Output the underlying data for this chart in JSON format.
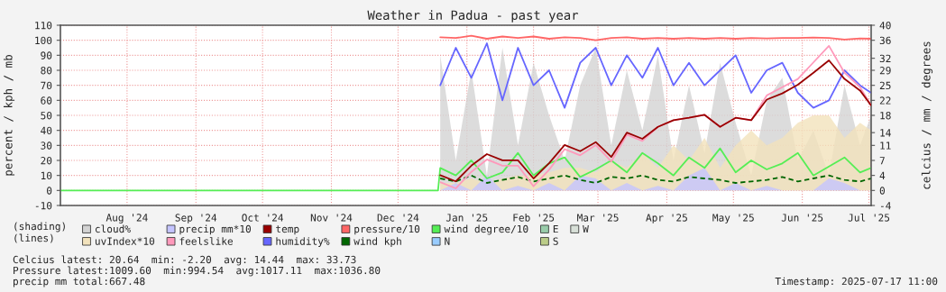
{
  "chart_data": {
    "type": "line",
    "title": "Weather in Padua - past year",
    "ylabel": "percent / kph / mb",
    "y2label": "celcius / mm / degrees",
    "x": [
      "2025-01-04",
      "2025-01-11",
      "2025-01-18",
      "2025-01-25",
      "2025-02-01",
      "2025-02-08",
      "2025-02-15",
      "2025-02-22",
      "2025-03-01",
      "2025-03-08",
      "2025-03-15",
      "2025-03-22",
      "2025-03-29",
      "2025-04-05",
      "2025-04-12",
      "2025-04-19",
      "2025-04-26",
      "2025-05-03",
      "2025-05-10",
      "2025-05-17",
      "2025-05-24",
      "2025-05-31",
      "2025-06-07",
      "2025-06-14",
      "2025-06-21",
      "2025-06-28",
      "2025-07-05",
      "2025-07-12",
      "2025-07-17"
    ],
    "series": [
      {
        "name": "cloud%",
        "type": "area",
        "color": "#d3d3d3",
        "values": [
          90,
          20,
          80,
          10,
          95,
          30,
          85,
          50,
          20,
          70,
          95,
          30,
          80,
          40,
          90,
          20,
          70,
          25,
          85,
          45,
          10,
          60,
          75,
          20,
          40,
          10,
          70,
          30,
          50
        ]
      },
      {
        "name": "uvIndex*10",
        "type": "area",
        "color": "#f2e2bc",
        "values": [
          5,
          5,
          8,
          5,
          8,
          10,
          10,
          12,
          15,
          15,
          12,
          20,
          15,
          25,
          15,
          30,
          20,
          35,
          15,
          30,
          40,
          30,
          35,
          45,
          50,
          50,
          35,
          45,
          40
        ]
      },
      {
        "name": "precip mm*10",
        "type": "area",
        "color": "#c4c4ff",
        "values": [
          0,
          5,
          0,
          10,
          0,
          3,
          0,
          5,
          0,
          10,
          8,
          0,
          5,
          0,
          3,
          0,
          10,
          15,
          0,
          5,
          0,
          3,
          0,
          0,
          0,
          8,
          5,
          0,
          0
        ]
      },
      {
        "name": "feelslike",
        "axis": "y2",
        "color": "#ff99bb",
        "values": [
          2.0,
          0.5,
          4.5,
          7.5,
          6,
          6,
          1,
          5,
          10,
          8.5,
          11,
          7,
          13.5,
          12,
          15.4,
          17,
          17.6,
          18.3,
          15.4,
          17.6,
          17,
          23,
          25,
          27,
          31,
          35,
          28.5,
          25,
          20.6
        ]
      },
      {
        "name": "temp",
        "axis": "y2",
        "color": "#990000",
        "values": [
          3.7,
          2.2,
          6,
          8.8,
          7.3,
          7.3,
          2.9,
          6.6,
          11,
          9.5,
          11.7,
          8.1,
          14,
          12.5,
          15.4,
          17,
          17.6,
          18.3,
          15.4,
          17.6,
          17,
          22,
          23.5,
          25.6,
          28.5,
          31.5,
          27,
          24.2,
          20.6
        ]
      },
      {
        "name": "humidity%",
        "color": "#6666ff",
        "values": [
          70,
          95,
          75,
          98,
          60,
          95,
          70,
          80,
          55,
          85,
          95,
          70,
          90,
          75,
          95,
          70,
          85,
          70,
          80,
          90,
          65,
          80,
          85,
          65,
          55,
          60,
          80,
          70,
          65
        ]
      },
      {
        "name": "pressure/10",
        "color": "#ff6666",
        "values": [
          102,
          101.5,
          103,
          101,
          102.5,
          101.5,
          102.5,
          101,
          102,
          101.5,
          100,
          101.5,
          102,
          101,
          101.5,
          101,
          101.5,
          101,
          101.5,
          101,
          101.5,
          101.2,
          101.5,
          101.5,
          101.8,
          101.5,
          100.5,
          101.2,
          101
        ]
      },
      {
        "name": "wind kph",
        "line_style": "dashed",
        "color": "#006600",
        "values": [
          8,
          6,
          10,
          5,
          7,
          9,
          6,
          8,
          10,
          7,
          5,
          9,
          8,
          10,
          7,
          6,
          9,
          8,
          7,
          5,
          6,
          7,
          9,
          6,
          8,
          10,
          7,
          6,
          8
        ]
      },
      {
        "name": "wind degree/10",
        "color": "#55ee55",
        "x": [
          "2024-07-17",
          "2025-01-03",
          "2025-01-04",
          "2025-01-11",
          "2025-01-18",
          "2025-01-25",
          "2025-02-01",
          "2025-02-08",
          "2025-02-15",
          "2025-02-22",
          "2025-03-01",
          "2025-03-08",
          "2025-03-15",
          "2025-03-22",
          "2025-03-29",
          "2025-04-05",
          "2025-04-12",
          "2025-04-19",
          "2025-04-26",
          "2025-05-03",
          "2025-05-10",
          "2025-05-17",
          "2025-05-24",
          "2025-05-31",
          "2025-06-07",
          "2025-06-14",
          "2025-06-21",
          "2025-06-28",
          "2025-07-05",
          "2025-07-12",
          "2025-07-17"
        ],
        "values": [
          0,
          0,
          15,
          10,
          20,
          8,
          12,
          25,
          10,
          18,
          22,
          9,
          14,
          20,
          12,
          25,
          18,
          10,
          22,
          15,
          28,
          12,
          20,
          14,
          18,
          25,
          10,
          16,
          22,
          12,
          15
        ]
      },
      {
        "name": "N",
        "type": "area",
        "color": "#99ccff",
        "values": [
          null,
          null,
          null,
          null,
          null,
          null,
          null,
          null,
          null,
          null,
          null,
          null,
          null,
          null,
          null,
          null,
          null,
          null,
          null,
          null,
          null,
          null,
          null,
          null,
          null,
          null,
          null,
          null,
          null
        ]
      },
      {
        "name": "E",
        "type": "area",
        "color": "#99ccaa",
        "values": [
          null,
          null,
          null,
          null,
          null,
          null,
          null,
          null,
          null,
          null,
          null,
          null,
          null,
          null,
          null,
          null,
          null,
          null,
          null,
          null,
          null,
          null,
          null,
          null,
          null,
          null,
          null,
          null,
          null
        ]
      },
      {
        "name": "S",
        "type": "area",
        "color": "#bbcc88",
        "values": [
          null,
          null,
          null,
          null,
          null,
          null,
          null,
          null,
          null,
          null,
          null,
          null,
          null,
          null,
          null,
          null,
          null,
          null,
          null,
          null,
          null,
          null,
          null,
          null,
          null,
          null,
          null,
          null,
          null
        ]
      },
      {
        "name": "W",
        "type": "area",
        "color": "#d8e0d8",
        "values": [
          null,
          null,
          null,
          null,
          null,
          null,
          null,
          null,
          null,
          null,
          null,
          null,
          null,
          null,
          null,
          null,
          null,
          null,
          null,
          null,
          null,
          null,
          null,
          null,
          null,
          null,
          null,
          null,
          null
        ]
      }
    ],
    "xlim": [
      "2024-07-17",
      "2025-07-17"
    ],
    "xticks": [
      {
        "value": "2024-08-16",
        "label": "Aug '24"
      },
      {
        "value": "2024-09-16",
        "label": "Sep '24"
      },
      {
        "value": "2024-10-16",
        "label": "Oct '24"
      },
      {
        "value": "2024-11-16",
        "label": "Nov '24"
      },
      {
        "value": "2024-12-16",
        "label": "Dec '24"
      },
      {
        "value": "2025-01-16",
        "label": "Jan '25"
      },
      {
        "value": "2025-02-15",
        "label": "Feb '25"
      },
      {
        "value": "2025-03-16",
        "label": "Mar '25"
      },
      {
        "value": "2025-04-16",
        "label": "Apr '25"
      },
      {
        "value": "2025-05-16",
        "label": "May '25"
      },
      {
        "value": "2025-06-16",
        "label": "Jun '25"
      },
      {
        "value": "2025-07-16",
        "label": "Jul '25"
      }
    ],
    "ylim": [
      -10,
      110
    ],
    "yticks": [
      -10,
      0,
      10,
      20,
      30,
      40,
      50,
      60,
      70,
      80,
      90,
      100,
      110
    ],
    "y2lim": [
      -3.64,
      40
    ],
    "y2ticks": [
      {
        "value": -3.64,
        "label": "-4"
      },
      0,
      {
        "value": 3.64,
        "label": "4"
      },
      {
        "value": 7.27,
        "label": "7"
      },
      {
        "value": 10.91,
        "label": "11"
      },
      14,
      {
        "value": 18.18,
        "label": "18"
      },
      {
        "value": 21.82,
        "label": "22"
      },
      {
        "value": 25.45,
        "label": "25"
      },
      {
        "value": 29.09,
        "label": "29"
      },
      32,
      {
        "value": 36.36,
        "label": "36"
      },
      40
    ],
    "grid": true,
    "legend": "bottom left",
    "marker": "none",
    "annotations": [
      "(shading)",
      "(lines)",
      "Celcius latest: 20.64  min: -2.20  avg: 14.44  max: 33.73",
      "Pressure latest:1009.60  min:994.54  avg:1017.11  max:1036.80",
      "precip mm total:667.48",
      "Timestamp: 2025-07-17 11:00"
    ]
  }
}
